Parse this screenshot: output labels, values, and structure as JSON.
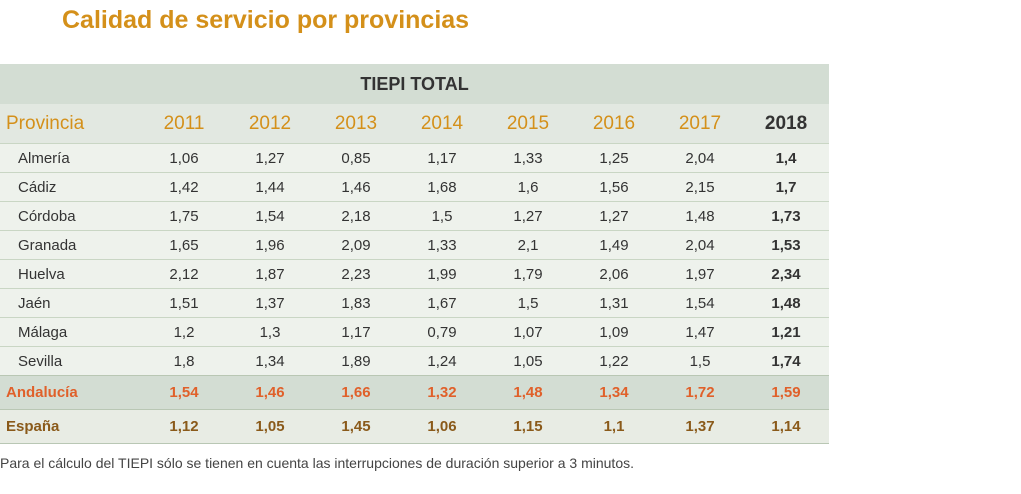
{
  "title": "Calidad de servicio por provincias",
  "table": {
    "group_header": "TIEPI TOTAL",
    "columns": [
      "Provincia",
      "2011",
      "2012",
      "2013",
      "2014",
      "2015",
      "2016",
      "2017",
      "2018"
    ],
    "rows": [
      [
        "Almería",
        "1,06",
        "1,27",
        "0,85",
        "1,17",
        "1,33",
        "1,25",
        "2,04",
        "1,4"
      ],
      [
        "Cádiz",
        "1,42",
        "1,44",
        "1,46",
        "1,68",
        "1,6",
        "1,56",
        "2,15",
        "1,7"
      ],
      [
        "Córdoba",
        "1,75",
        "1,54",
        "2,18",
        "1,5",
        "1,27",
        "1,27",
        "1,48",
        "1,73"
      ],
      [
        "Granada",
        "1,65",
        "1,96",
        "2,09",
        "1,33",
        "2,1",
        "1,49",
        "2,04",
        "1,53"
      ],
      [
        "Huelva",
        "2,12",
        "1,87",
        "2,23",
        "1,99",
        "1,79",
        "2,06",
        "1,97",
        "2,34"
      ],
      [
        "Jaén",
        "1,51",
        "1,37",
        "1,83",
        "1,67",
        "1,5",
        "1,31",
        "1,54",
        "1,48"
      ],
      [
        "Málaga",
        "1,2",
        "1,3",
        "1,17",
        "0,79",
        "1,07",
        "1,09",
        "1,47",
        "1,21"
      ],
      [
        "Sevilla",
        "1,8",
        "1,34",
        "1,89",
        "1,24",
        "1,05",
        "1,22",
        "1,5",
        "1,74"
      ]
    ],
    "totals": [
      [
        "Andalucía",
        "1,54",
        "1,46",
        "1,66",
        "1,32",
        "1,48",
        "1,34",
        "1,72",
        "1,59"
      ],
      [
        "España",
        "1,12",
        "1,05",
        "1,45",
        "1,06",
        "1,15",
        "1,1",
        "1,37",
        "1,14"
      ]
    ]
  },
  "footnote": "Para el cálculo del TIEPI sólo se tienen en cuenta las interrupciones de duración superior a 3 minutos."
}
